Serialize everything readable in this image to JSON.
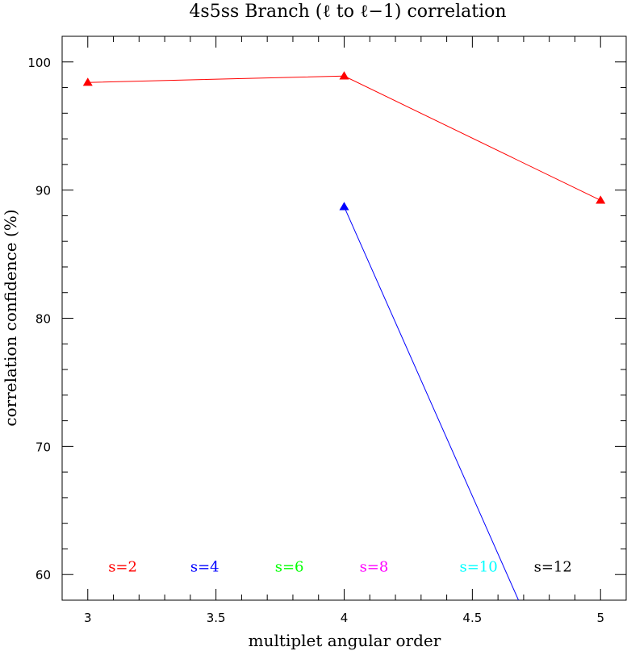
{
  "chart_data": {
    "type": "line",
    "title": "4s5ss Branch (ℓ to ℓ−1) correlation",
    "xlabel": "multiplet angular order",
    "ylabel": "correlation confidence (%)",
    "xlim": [
      2.9,
      5.1
    ],
    "ylim": [
      58,
      102
    ],
    "x_ticks": [
      3,
      3.5,
      4,
      4.5,
      5
    ],
    "x_tick_labels": [
      "3",
      "3.5",
      "4",
      "4.5",
      "5"
    ],
    "y_ticks": [
      60,
      70,
      80,
      90,
      100
    ],
    "y_tick_labels": [
      "60",
      "70",
      "80",
      "90",
      "100"
    ],
    "grid": false,
    "marker": "triangle",
    "series": [
      {
        "name": "s=2",
        "color": "#ff0000",
        "x": [
          3,
          4,
          5
        ],
        "y": [
          98.4,
          98.9,
          89.2
        ]
      },
      {
        "name": "s=4",
        "color": "#0000ff",
        "x": [
          4,
          4.68
        ],
        "y": [
          88.7,
          58
        ],
        "markers": [
          true,
          false
        ]
      },
      {
        "name": "s=6",
        "color": "#00ff00",
        "x": [],
        "y": []
      },
      {
        "name": "s=8",
        "color": "#ff00ff",
        "x": [],
        "y": []
      },
      {
        "name": "s=10",
        "color": "#00ffff",
        "x": [],
        "y": []
      },
      {
        "name": "s=12",
        "color": "#000000",
        "x": [],
        "y": []
      }
    ],
    "legend": {
      "placement": "bottom",
      "y_value": 60.6,
      "x_values": [
        3.08,
        3.4,
        3.73,
        4.06,
        4.45,
        4.74
      ]
    }
  }
}
